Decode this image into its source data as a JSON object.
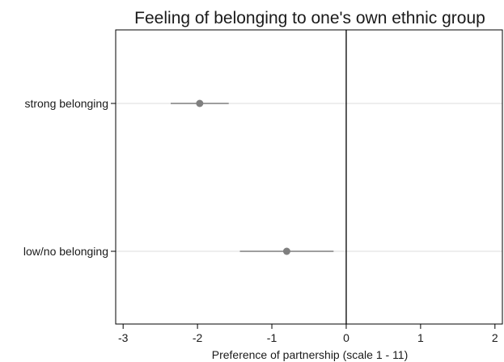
{
  "chart_data": {
    "type": "scatter",
    "title": "Feeling of belonging to one's own ethnic group",
    "xlabel": "Preference of partnership (scale 1 - 11)",
    "ylabel": "",
    "xlim": [
      -3.1,
      2.1
    ],
    "xticks": [
      -3,
      -2,
      -1,
      0,
      1,
      2
    ],
    "xtick_labels": [
      "-3",
      "-2",
      "-1",
      "0",
      "1",
      "2"
    ],
    "reference_line_x": 0,
    "grid": "horizontal",
    "categories": [
      "strong belonging",
      "low/no belonging"
    ],
    "points": [
      {
        "category": "strong belonging",
        "estimate": -1.97,
        "ci_low": -2.36,
        "ci_high": -1.58
      },
      {
        "category": "low/no belonging",
        "estimate": -0.8,
        "ci_low": -1.43,
        "ci_high": -0.17
      }
    ],
    "colors": {
      "marker": "#7f7f7f",
      "ci": "#7f7f7f",
      "grid": "#dcdcdc",
      "axis": "#000000",
      "refline": "#000000"
    }
  }
}
